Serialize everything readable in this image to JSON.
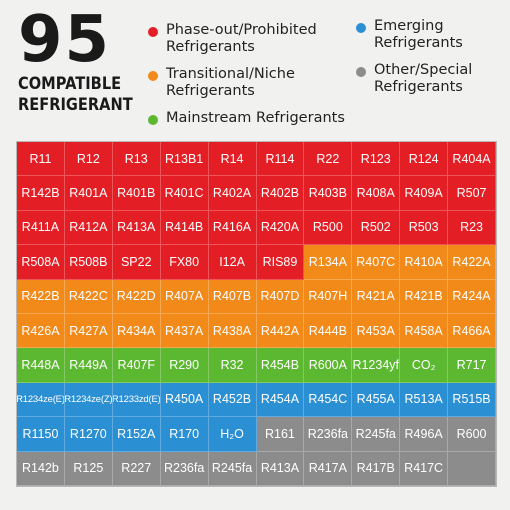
{
  "header": {
    "count": "95",
    "subtitle_line1": "COMPATIBLE",
    "subtitle_line2": "REFRIGERANT"
  },
  "legend": {
    "phaseout": {
      "line1": "Phase-out/Prohibited",
      "line2": "Refrigerants",
      "color": "#e41e25"
    },
    "transitional": {
      "line1": "Transitional/Niche",
      "line2": "Refrigerants",
      "color": "#f28a19"
    },
    "mainstream": {
      "line1": "Mainstream Refrigerants",
      "color": "#5cb731"
    },
    "emerging": {
      "line1": "Emerging",
      "line2": "Refrigerants",
      "color": "#2b8fd4"
    },
    "other": {
      "line1": "Other/Special",
      "line2": "Refrigerants",
      "color": "#8c8c8c"
    }
  },
  "grid": [
    [
      [
        "R11",
        "red"
      ],
      [
        "R12",
        "red"
      ],
      [
        "R13",
        "red"
      ],
      [
        "R13B1",
        "red"
      ],
      [
        "R14",
        "red"
      ],
      [
        "R114",
        "red"
      ],
      [
        "R22",
        "red"
      ],
      [
        "R123",
        "red"
      ],
      [
        "R124",
        "red"
      ],
      [
        "R404A",
        "red"
      ]
    ],
    [
      [
        "R142B",
        "red"
      ],
      [
        "R401A",
        "red"
      ],
      [
        "R401B",
        "red"
      ],
      [
        "R401C",
        "red"
      ],
      [
        "R402A",
        "red"
      ],
      [
        "R402B",
        "red"
      ],
      [
        "R403B",
        "red"
      ],
      [
        "R408A",
        "red"
      ],
      [
        "R409A",
        "red"
      ],
      [
        "R507",
        "red"
      ]
    ],
    [
      [
        "R411A",
        "red"
      ],
      [
        "R412A",
        "red"
      ],
      [
        "R413A",
        "red"
      ],
      [
        "R414B",
        "red"
      ],
      [
        "R416A",
        "red"
      ],
      [
        "R420A",
        "red"
      ],
      [
        "R500",
        "red"
      ],
      [
        "R502",
        "red"
      ],
      [
        "R503",
        "red"
      ],
      [
        "R23",
        "red"
      ]
    ],
    [
      [
        "R508A",
        "red"
      ],
      [
        "R508B",
        "red"
      ],
      [
        "SP22",
        "red"
      ],
      [
        "FX80",
        "red"
      ],
      [
        "I12A",
        "red"
      ],
      [
        "RIS89",
        "red"
      ],
      [
        "R134A",
        "orange"
      ],
      [
        "R407C",
        "orange"
      ],
      [
        "R410A",
        "orange"
      ],
      [
        "R422A",
        "orange"
      ]
    ],
    [
      [
        "R422B",
        "orange"
      ],
      [
        "R422C",
        "orange"
      ],
      [
        "R422D",
        "orange"
      ],
      [
        "R407A",
        "orange"
      ],
      [
        "R407B",
        "orange"
      ],
      [
        "R407D",
        "orange"
      ],
      [
        "R407H",
        "orange"
      ],
      [
        "R421A",
        "orange"
      ],
      [
        "R421B",
        "orange"
      ],
      [
        "R424A",
        "orange"
      ]
    ],
    [
      [
        "R426A",
        "orange"
      ],
      [
        "R427A",
        "orange"
      ],
      [
        "R434A",
        "orange"
      ],
      [
        "R437A",
        "orange"
      ],
      [
        "R438A",
        "orange"
      ],
      [
        "R442A",
        "orange"
      ],
      [
        "R444B",
        "orange"
      ],
      [
        "R453A",
        "orange"
      ],
      [
        "R458A",
        "orange"
      ],
      [
        "R466A",
        "orange"
      ]
    ],
    [
      [
        "R448A",
        "green"
      ],
      [
        "R449A",
        "green"
      ],
      [
        "R407F",
        "green"
      ],
      [
        "R290",
        "green"
      ],
      [
        "R32",
        "green"
      ],
      [
        "R454B",
        "green"
      ],
      [
        "R600A",
        "green"
      ],
      [
        "R1234yf",
        "green"
      ],
      [
        "CO₂",
        "green"
      ],
      [
        "R717",
        "green"
      ]
    ],
    [
      [
        "R1234ze(E)",
        "blue"
      ],
      [
        "R1234ze(Z)",
        "blue"
      ],
      [
        "R1233zd(E)",
        "blue"
      ],
      [
        "R450A",
        "blue"
      ],
      [
        "R452B",
        "blue"
      ],
      [
        "R454A",
        "blue"
      ],
      [
        "R454C",
        "blue"
      ],
      [
        "R455A",
        "blue"
      ],
      [
        "R513A",
        "blue"
      ],
      [
        "R515B",
        "blue"
      ]
    ],
    [
      [
        "R1150",
        "blue"
      ],
      [
        "R1270",
        "blue"
      ],
      [
        "R152A",
        "blue"
      ],
      [
        "R170",
        "blue"
      ],
      [
        "H₂O",
        "blue"
      ],
      [
        "R161",
        "gray"
      ],
      [
        "R236fa",
        "gray"
      ],
      [
        "R245fa",
        "gray"
      ],
      [
        "R496A",
        "gray"
      ],
      [
        "R600",
        "gray"
      ]
    ],
    [
      [
        "R142b",
        "gray"
      ],
      [
        "R125",
        "gray"
      ],
      [
        "R227",
        "gray"
      ],
      [
        "R236fa",
        "gray"
      ],
      [
        "R245fa",
        "gray"
      ],
      [
        "R413A",
        "gray"
      ],
      [
        "R417A",
        "gray"
      ],
      [
        "R417B",
        "gray"
      ],
      [
        "R417C",
        "gray"
      ],
      [
        "",
        "empty"
      ]
    ]
  ]
}
